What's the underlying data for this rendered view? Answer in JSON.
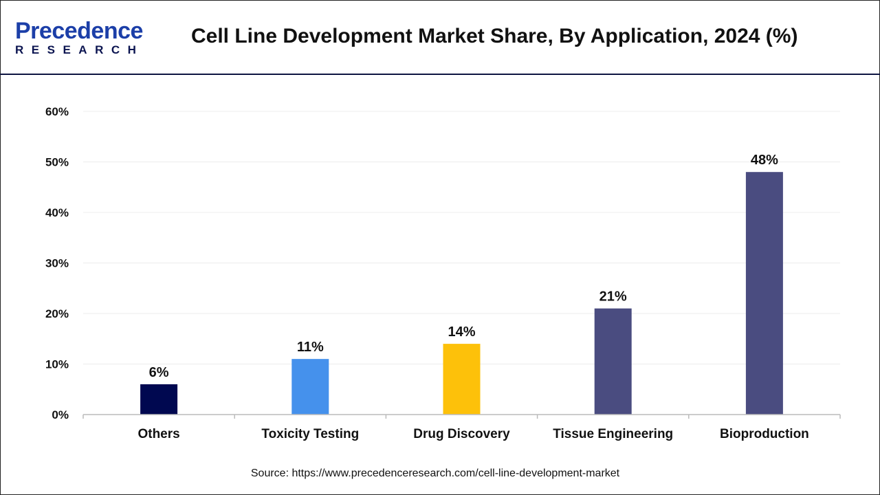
{
  "header": {
    "logo_line1": "Precedence",
    "logo_line2": "RESEARCH",
    "title": "Cell Line Development Market Share, By Application, 2024 (%)"
  },
  "chart_data": {
    "type": "bar",
    "title": "Cell Line Development Market Share, By Application, 2024 (%)",
    "categories": [
      "Others",
      "Toxicity Testing",
      "Drug Discovery",
      "Tissue Engineering",
      "Bioproduction"
    ],
    "values": [
      6,
      11,
      14,
      21,
      48
    ],
    "data_labels": [
      "6%",
      "11%",
      "14%",
      "21%",
      "48%"
    ],
    "colors": [
      "#000850",
      "#4591ec",
      "#fdc10a",
      "#4a4c80",
      "#4a4c80"
    ],
    "ylim": [
      0,
      60
    ],
    "yticks": [
      0,
      10,
      20,
      30,
      40,
      50,
      60
    ],
    "ytick_labels": [
      "0%",
      "10%",
      "20%",
      "30%",
      "40%",
      "50%",
      "60%"
    ],
    "grid": true,
    "xlabel": "",
    "ylabel": ""
  },
  "footer": {
    "source": "Source: https://www.precedenceresearch.com/cell-line-development-market"
  }
}
